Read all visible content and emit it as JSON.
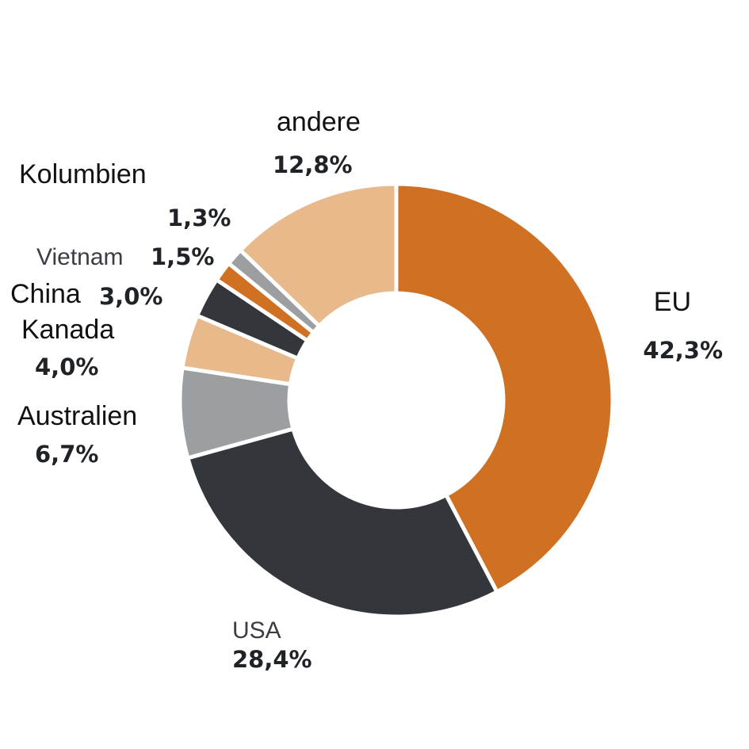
{
  "chart_data": {
    "type": "pie",
    "title": "",
    "start_angle_deg": 0,
    "direction": "clockwise",
    "slices": [
      {
        "name": "EU",
        "value": 42.3,
        "label": "42,3%",
        "color": "#cf7023"
      },
      {
        "name": "USA",
        "value": 28.4,
        "label": "28,4%",
        "color": "#33363b"
      },
      {
        "name": "Australien",
        "value": 6.7,
        "label": "6,7%",
        "color": "#9c9fa2"
      },
      {
        "name": "Kanada",
        "value": 4.0,
        "label": "4,0%",
        "color": "#e8b98b"
      },
      {
        "name": "China",
        "value": 3.0,
        "label": "3,0%",
        "color": "#33363b"
      },
      {
        "name": "Vietnam",
        "value": 1.5,
        "label": "1,5%",
        "color": "#cf7023"
      },
      {
        "name": "Kolumbien",
        "value": 1.3,
        "label": "1,3%",
        "color": "#9c9fa2"
      },
      {
        "name": "andere",
        "value": 12.8,
        "label": "12,8%",
        "color": "#e8b98b"
      }
    ]
  }
}
